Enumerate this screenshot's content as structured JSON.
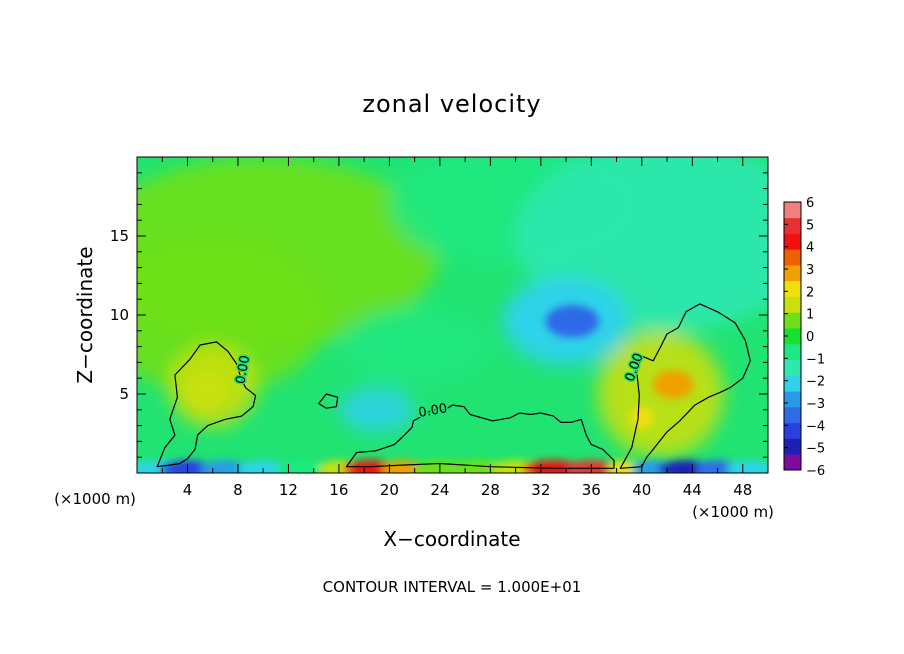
{
  "chart_data": {
    "type": "heatmap",
    "title": "zonal velocity",
    "xlabel": "X−coordinate",
    "ylabel": "Z−coordinate",
    "x_unit_left": "(×1000 m)",
    "x_unit_right": "(×1000 m)",
    "footer": "CONTOUR INTERVAL = 1.000E+01",
    "contour_label": "0.00",
    "xlim": [
      0,
      50
    ],
    "ylim": [
      0,
      20
    ],
    "x_ticks": [
      4,
      8,
      12,
      16,
      20,
      24,
      28,
      32,
      36,
      40,
      44,
      48
    ],
    "y_ticks": [
      5,
      10,
      15
    ],
    "colorbar": {
      "min": -6,
      "max": 6,
      "tick_labels": [
        "6",
        "5",
        "4",
        "3",
        "2",
        "1",
        "0",
        "−1",
        "−2",
        "−3",
        "−4",
        "−5",
        "−6"
      ],
      "tick_values": [
        6,
        5,
        4,
        3,
        2,
        1,
        0,
        -1,
        -2,
        -3,
        -4,
        -5,
        -6
      ],
      "colors": [
        "#7f0d9c",
        "#1f1fb8",
        "#2b3fe0",
        "#2f6be8",
        "#2a9ae8",
        "#2ed3e8",
        "#2ee8b0",
        "#1ee880",
        "#18e030",
        "#6ee018",
        "#c8e010",
        "#f0e010",
        "#f0a000",
        "#f06000",
        "#f01010",
        "#e83030",
        "#f08080"
      ]
    },
    "features": [
      {
        "name": "low-level westward jet region",
        "x": 12,
        "z": 9,
        "value": 0.6
      },
      {
        "name": "upper easterly core",
        "x": 34,
        "z": 9.8,
        "value": -3.2
      },
      {
        "name": "eastern cell maximum",
        "x": 42.5,
        "z": 5.6,
        "value": 2.8
      },
      {
        "name": "eastern cell secondary",
        "x": 40,
        "z": 3.5,
        "value": 2.4
      },
      {
        "name": "western cell maximum",
        "x": 5.5,
        "z": 5.5,
        "value": 1.3
      },
      {
        "name": "surface maximum",
        "x": 19,
        "z": 0.4,
        "value": 4.2
      },
      {
        "name": "surface maximum",
        "x": 34,
        "z": 0.4,
        "value": 4.5
      },
      {
        "name": "surface minimum",
        "x": 4,
        "z": 0.4,
        "value": -4.2
      },
      {
        "name": "surface minimum",
        "x": 43,
        "z": 0.4,
        "value": -4.6
      },
      {
        "name": "weak easterly",
        "x": 19,
        "z": 4,
        "value": -1.8
      },
      {
        "name": "upper northeast region",
        "x": 40,
        "z": 17,
        "value": -1.2
      }
    ]
  }
}
